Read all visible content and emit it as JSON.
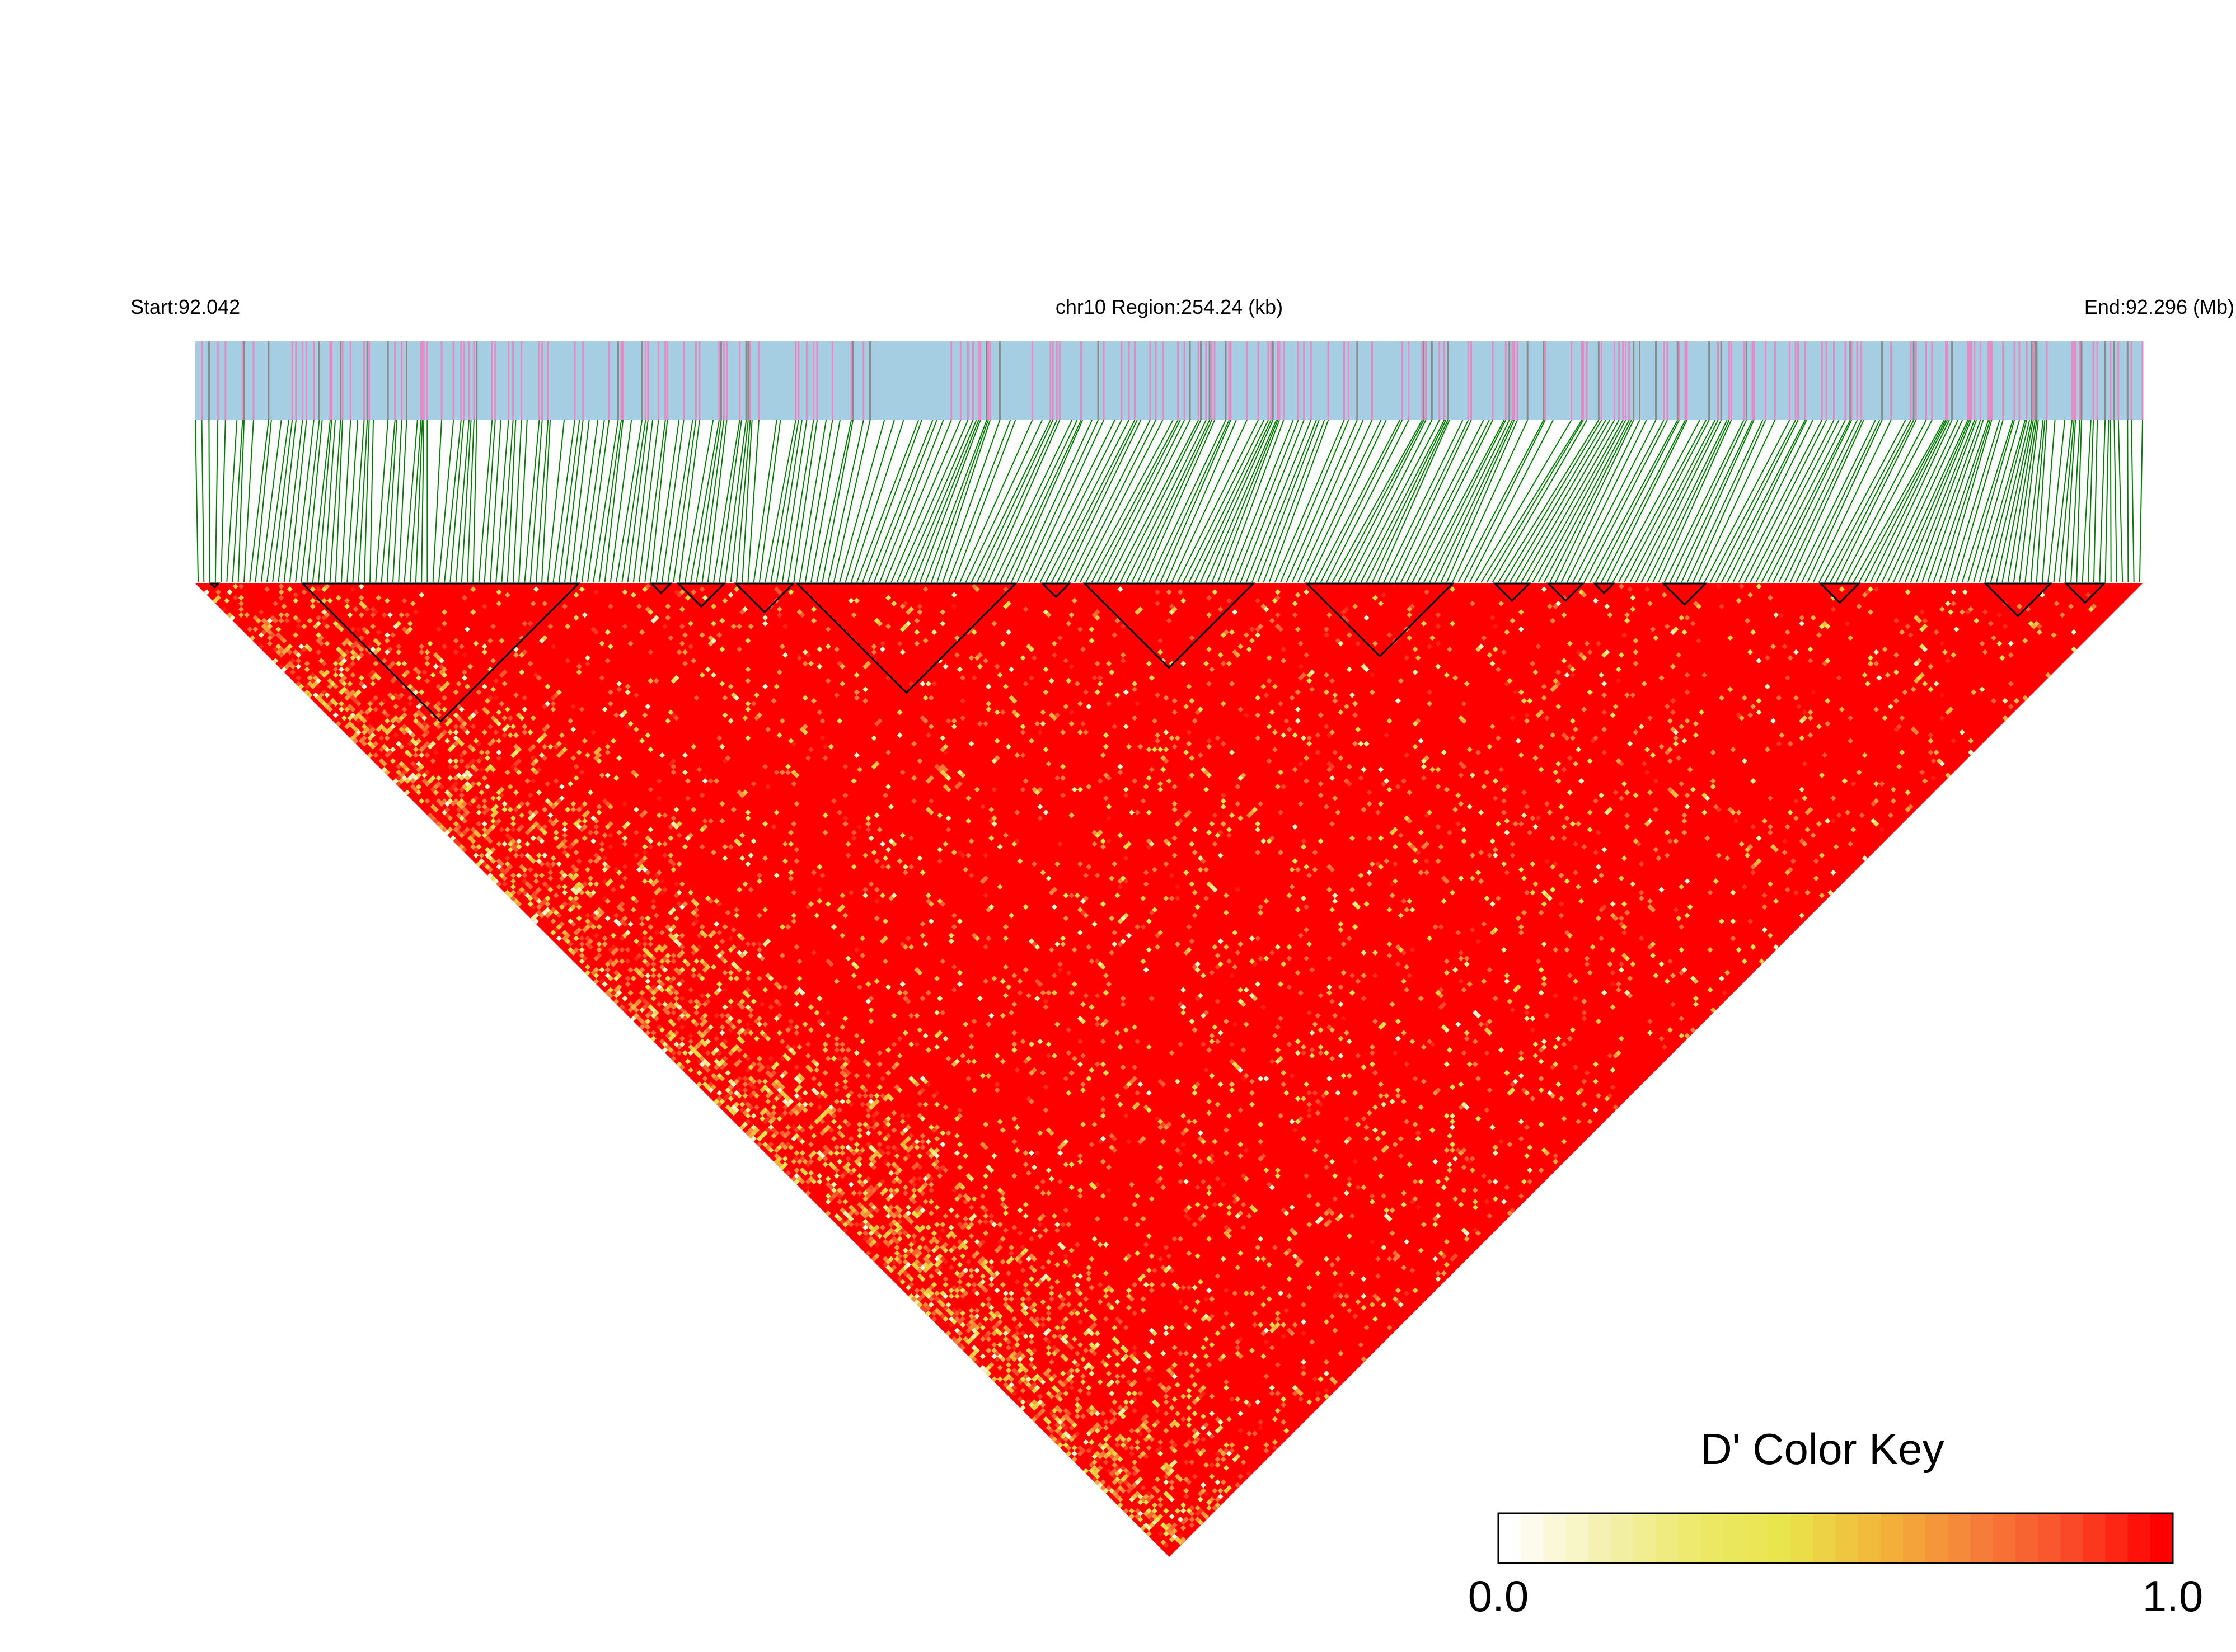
{
  "chart_data": {
    "type": "heatmap",
    "subtype": "LD block heatmap (triangle)",
    "title": "chr10 Region:254.24 (kb)",
    "chromosome": "chr10",
    "region_kb": 254.24,
    "start_label": "Start:92.042",
    "end_label": "End:92.296 (Mb)",
    "start_mb": 92.042,
    "end_mb": 92.296,
    "snp_count_approx": 340,
    "snp_track_colors": {
      "background": "#a6cee3",
      "variant_a": "#e78ac3",
      "variant_b": "#8a8a8a"
    },
    "connector_color": "#008000",
    "block_outline_color": "#000000",
    "ld_blocks": [
      {
        "from_mb": 92.044,
        "to_mb": 92.045
      },
      {
        "from_mb": 92.056,
        "to_mb": 92.092
      },
      {
        "from_mb": 92.1015,
        "to_mb": 92.104
      },
      {
        "from_mb": 92.105,
        "to_mb": 92.111
      },
      {
        "from_mb": 92.1125,
        "to_mb": 92.12
      },
      {
        "from_mb": 92.1205,
        "to_mb": 92.149
      },
      {
        "from_mb": 92.1525,
        "to_mb": 92.156
      },
      {
        "from_mb": 92.158,
        "to_mb": 92.18
      },
      {
        "from_mb": 92.187,
        "to_mb": 92.206
      },
      {
        "from_mb": 92.2115,
        "to_mb": 92.216
      },
      {
        "from_mb": 92.2185,
        "to_mb": 92.223
      },
      {
        "from_mb": 92.2245,
        "to_mb": 92.227
      },
      {
        "from_mb": 92.2335,
        "to_mb": 92.239
      },
      {
        "from_mb": 92.254,
        "to_mb": 92.259
      },
      {
        "from_mb": 92.2755,
        "to_mb": 92.284
      },
      {
        "from_mb": 92.286,
        "to_mb": 92.291
      }
    ],
    "color_key": {
      "title": "D' Color Key",
      "min_label": "0.0",
      "max_label": "1.0",
      "min": 0.0,
      "max": 1.0,
      "gradient": [
        "#ffffff",
        "#f5f1b0",
        "#ede96a",
        "#e8e44a",
        "#f3b43a",
        "#f6813a",
        "#fa4c2a",
        "#ff0000"
      ]
    },
    "value_distribution": "mostly D' near 1.0 (red), with scattered lower values (orange/yellow/white), lower values concentrated along the left flank of the triangle"
  }
}
